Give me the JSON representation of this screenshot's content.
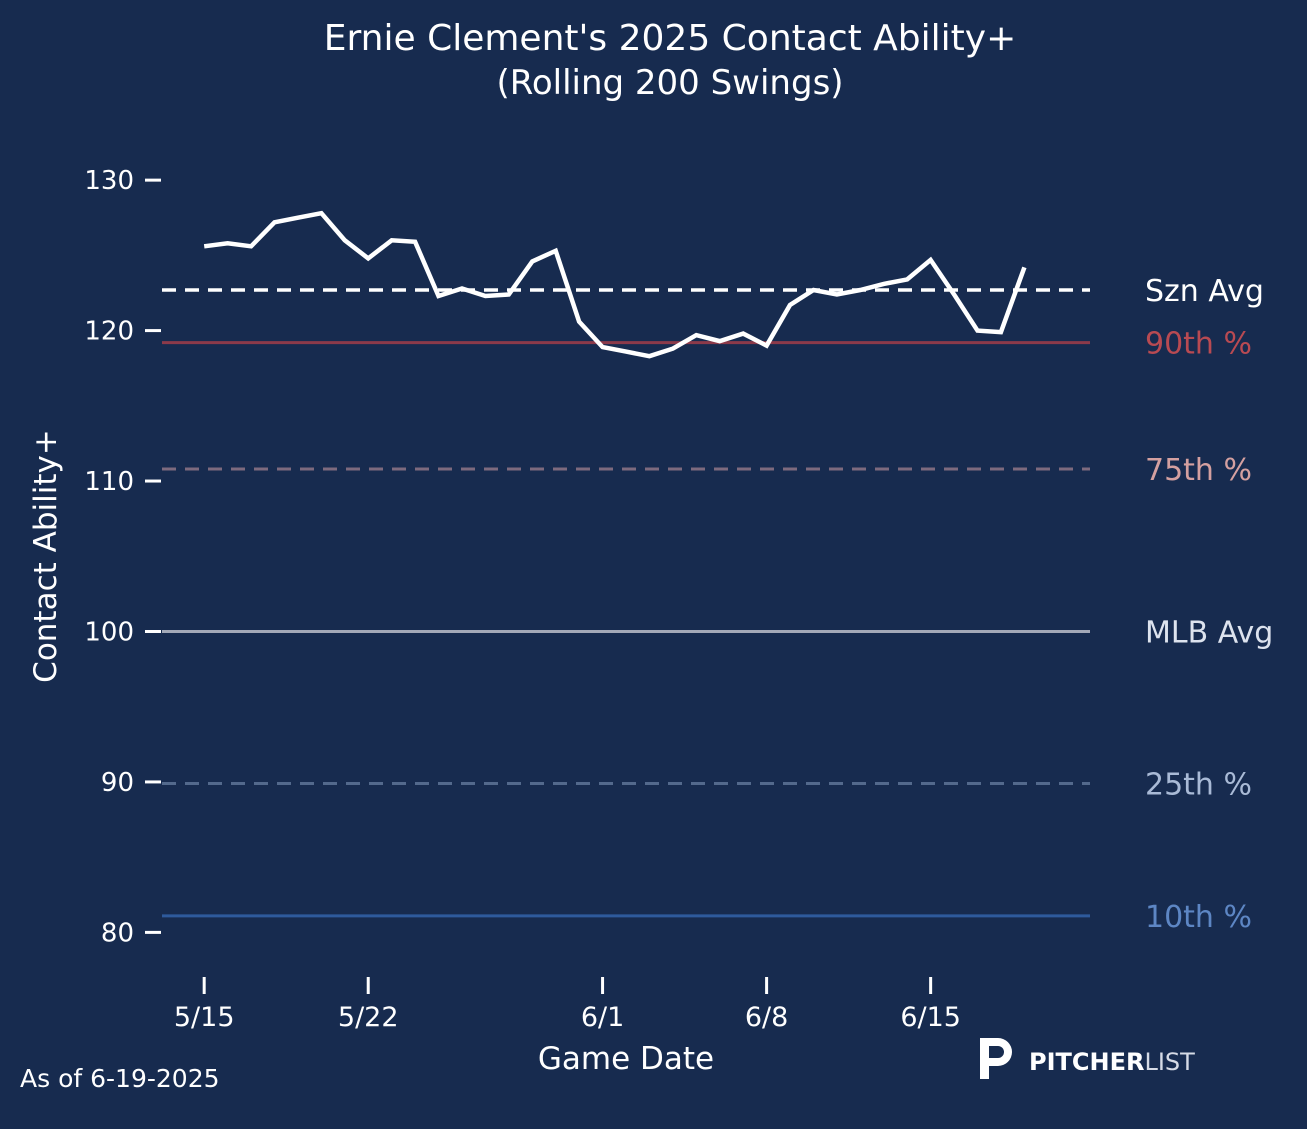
{
  "colors": {
    "background": "#172b4f",
    "line": "#ffffff",
    "text": "#ffffff",
    "p90": "#8c3a4a",
    "p90_label": "#b84a52",
    "p75": "#7d6a7e",
    "p75_label": "#d4a0a0",
    "mlb": "#a3a9b8",
    "mlb_label": "#dde3ee",
    "p25": "#53698c",
    "p25_label": "#a9bad6",
    "p10": "#2e5a9c",
    "p10_label": "#5d86c4",
    "szn": "#ffffff"
  },
  "chart_data": {
    "type": "line",
    "title_line1": "Ernie Clement's 2025 Contact Ability+",
    "title_line2": "(Rolling 200 Swings)",
    "xlabel": "Game Date",
    "ylabel": "Contact Ability+",
    "ylim": [
      77.5,
      133
    ],
    "yticks": [
      80,
      90,
      100,
      110,
      120,
      130
    ],
    "xlim_days": [
      -1.8,
      37.8
    ],
    "xticks": [
      {
        "day": 0,
        "label": "5/15"
      },
      {
        "day": 7,
        "label": "5/22"
      },
      {
        "day": 17,
        "label": "6/1"
      },
      {
        "day": 24,
        "label": "6/8"
      },
      {
        "day": 31,
        "label": "6/15"
      }
    ],
    "series": [
      {
        "name": "Contact Ability+ (rolling 200 swings)",
        "x_days": [
          0,
          1,
          2,
          3,
          4,
          5,
          6,
          7,
          8,
          9,
          10,
          11,
          12,
          13,
          14,
          15,
          16,
          17,
          18,
          19,
          20,
          21,
          22,
          23,
          24,
          25,
          26,
          27,
          28,
          29,
          30,
          31,
          32,
          33,
          34,
          35
        ],
        "values": [
          125.6,
          125.8,
          125.6,
          127.2,
          127.5,
          127.8,
          126.0,
          124.8,
          126.0,
          125.9,
          122.3,
          122.8,
          122.3,
          122.4,
          124.6,
          125.3,
          120.6,
          118.9,
          118.6,
          118.3,
          118.8,
          119.7,
          119.3,
          119.8,
          119.0,
          121.7,
          122.7,
          122.4,
          122.7,
          123.1,
          123.4,
          124.7,
          122.4,
          120.0,
          119.9,
          124.2
        ]
      }
    ],
    "reference_lines": [
      {
        "key": "szn",
        "label": "Szn Avg",
        "value": 122.7,
        "style": "dashed"
      },
      {
        "key": "p90",
        "label": "90th %",
        "value": 119.2,
        "style": "solid"
      },
      {
        "key": "p75",
        "label": "75th %",
        "value": 110.8,
        "style": "dashed"
      },
      {
        "key": "mlb",
        "label": "MLB Avg",
        "value": 100.0,
        "style": "solid"
      },
      {
        "key": "p25",
        "label": "25th %",
        "value": 89.9,
        "style": "dashed"
      },
      {
        "key": "p10",
        "label": "10th %",
        "value": 81.1,
        "style": "solid"
      }
    ]
  },
  "footer": {
    "as_of": "As of 6-19-2025",
    "brand_bold": "PITCHER",
    "brand_light": "LIST"
  }
}
